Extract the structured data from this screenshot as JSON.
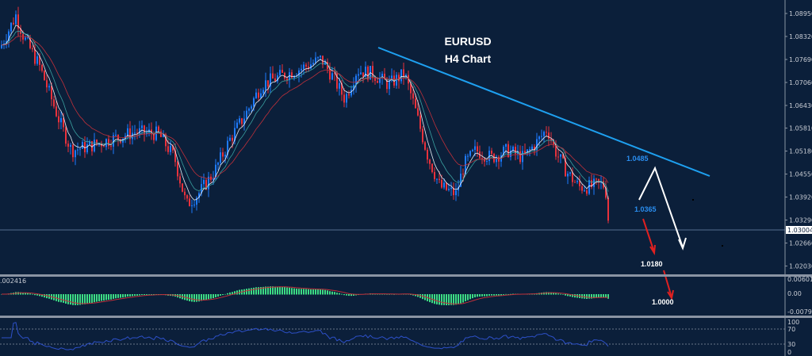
{
  "chart_data": {
    "type": "candlestick",
    "title": "EURUSD",
    "subtitle": "H4 Chart",
    "symbol": "EURUSD",
    "timeframe": "H4",
    "ylim": [
      1.018,
      1.093
    ],
    "price_ticks": [
      "1.08950",
      "1.08320",
      "1.07690",
      "1.07060",
      "1.06430",
      "1.05810",
      "1.05180",
      "1.04550",
      "1.03920",
      "1.03290",
      "1.02660",
      "1.02030"
    ],
    "current_price": "1.03004",
    "approx_close_path": [
      [
        0,
        1.08
      ],
      [
        20,
        1.089
      ],
      [
        30,
        1.083
      ],
      [
        50,
        1.075
      ],
      [
        75,
        1.06
      ],
      [
        90,
        1.052
      ],
      [
        110,
        1.053
      ],
      [
        140,
        1.055
      ],
      [
        170,
        1.057
      ],
      [
        200,
        1.0565
      ],
      [
        220,
        1.05
      ],
      [
        235,
        1.037
      ],
      [
        250,
        1.04
      ],
      [
        270,
        1.046
      ],
      [
        290,
        1.055
      ],
      [
        310,
        1.062
      ],
      [
        330,
        1.07
      ],
      [
        350,
        1.072
      ],
      [
        380,
        1.0745
      ],
      [
        405,
        1.077
      ],
      [
        420,
        1.072
      ],
      [
        435,
        1.066
      ],
      [
        450,
        1.074
      ],
      [
        470,
        1.073
      ],
      [
        490,
        1.07
      ],
      [
        510,
        1.073
      ],
      [
        520,
        1.066
      ],
      [
        530,
        1.058
      ],
      [
        540,
        1.05
      ],
      [
        555,
        1.042
      ],
      [
        575,
        1.04
      ],
      [
        585,
        1.048
      ],
      [
        600,
        1.052
      ],
      [
        620,
        1.05
      ],
      [
        640,
        1.052
      ],
      [
        660,
        1.05
      ],
      [
        680,
        1.055
      ],
      [
        690,
        1.058
      ],
      [
        700,
        1.052
      ],
      [
        715,
        1.046
      ],
      [
        730,
        1.042
      ],
      [
        745,
        1.042
      ],
      [
        760,
        1.043
      ],
      [
        765,
        1.04
      ],
      [
        768,
        1.03
      ]
    ],
    "trendline": {
      "from_price": 1.077,
      "to_price": 1.047
    },
    "annotations": {
      "target_high": "1.0485",
      "support": "1.0365",
      "target_1": "1.0180",
      "target_2": "1.0000"
    },
    "macd": {
      "label": ".002416",
      "ticks": [
        "0.006017",
        "0.00",
        "-0.007913"
      ]
    },
    "rsi": {
      "ticks": [
        "100",
        "70",
        "30",
        "0"
      ],
      "levels": [
        70,
        30
      ]
    },
    "colors": {
      "background": "#0b1f3a",
      "up": "#1e7bff",
      "down": "#e8323c",
      "trendline": "#1ea0f0",
      "macd_hist": "#3ddc84",
      "macd_signal": "#c0303a",
      "rsi": "#2d50c8",
      "ann_blue": "#2a8ef0"
    }
  }
}
